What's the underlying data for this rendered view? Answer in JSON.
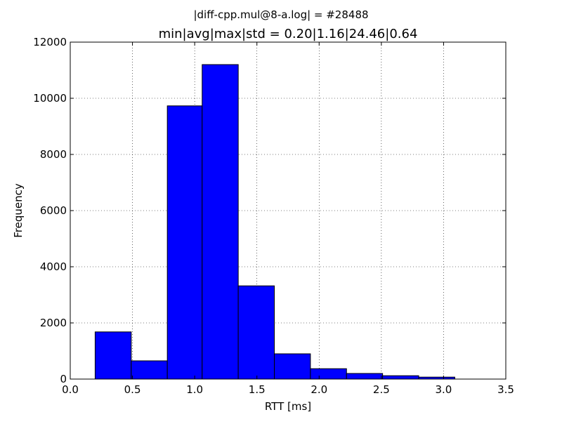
{
  "chart_data": {
    "type": "bar",
    "suptitle": "|diff-cpp.mul@8-a.log| = #28488",
    "title": "min|avg|max|std = 0.20|1.16|24.46|0.64",
    "xlabel": "RTT [ms]",
    "ylabel": "Frequency",
    "xlim": [
      0.0,
      3.5
    ],
    "ylim": [
      0,
      12000
    ],
    "xticks": [
      0.0,
      0.5,
      1.0,
      1.5,
      2.0,
      2.5,
      3.0,
      3.5
    ],
    "xtick_labels": [
      "0.0",
      "0.5",
      "1.0",
      "1.5",
      "2.0",
      "2.5",
      "3.0",
      "3.5"
    ],
    "yticks": [
      0,
      2000,
      4000,
      6000,
      8000,
      10000,
      12000
    ],
    "ytick_labels": [
      "0",
      "2000",
      "4000",
      "6000",
      "8000",
      "10000",
      "12000"
    ],
    "grid": true,
    "bin_edges": [
      0.2,
      0.49,
      0.78,
      1.06,
      1.35,
      1.64,
      1.93,
      2.22,
      2.51,
      2.8,
      3.09
    ],
    "values": [
      1680,
      650,
      9730,
      11200,
      3320,
      900,
      370,
      200,
      120,
      70
    ],
    "bar_color": "#0000ff"
  }
}
